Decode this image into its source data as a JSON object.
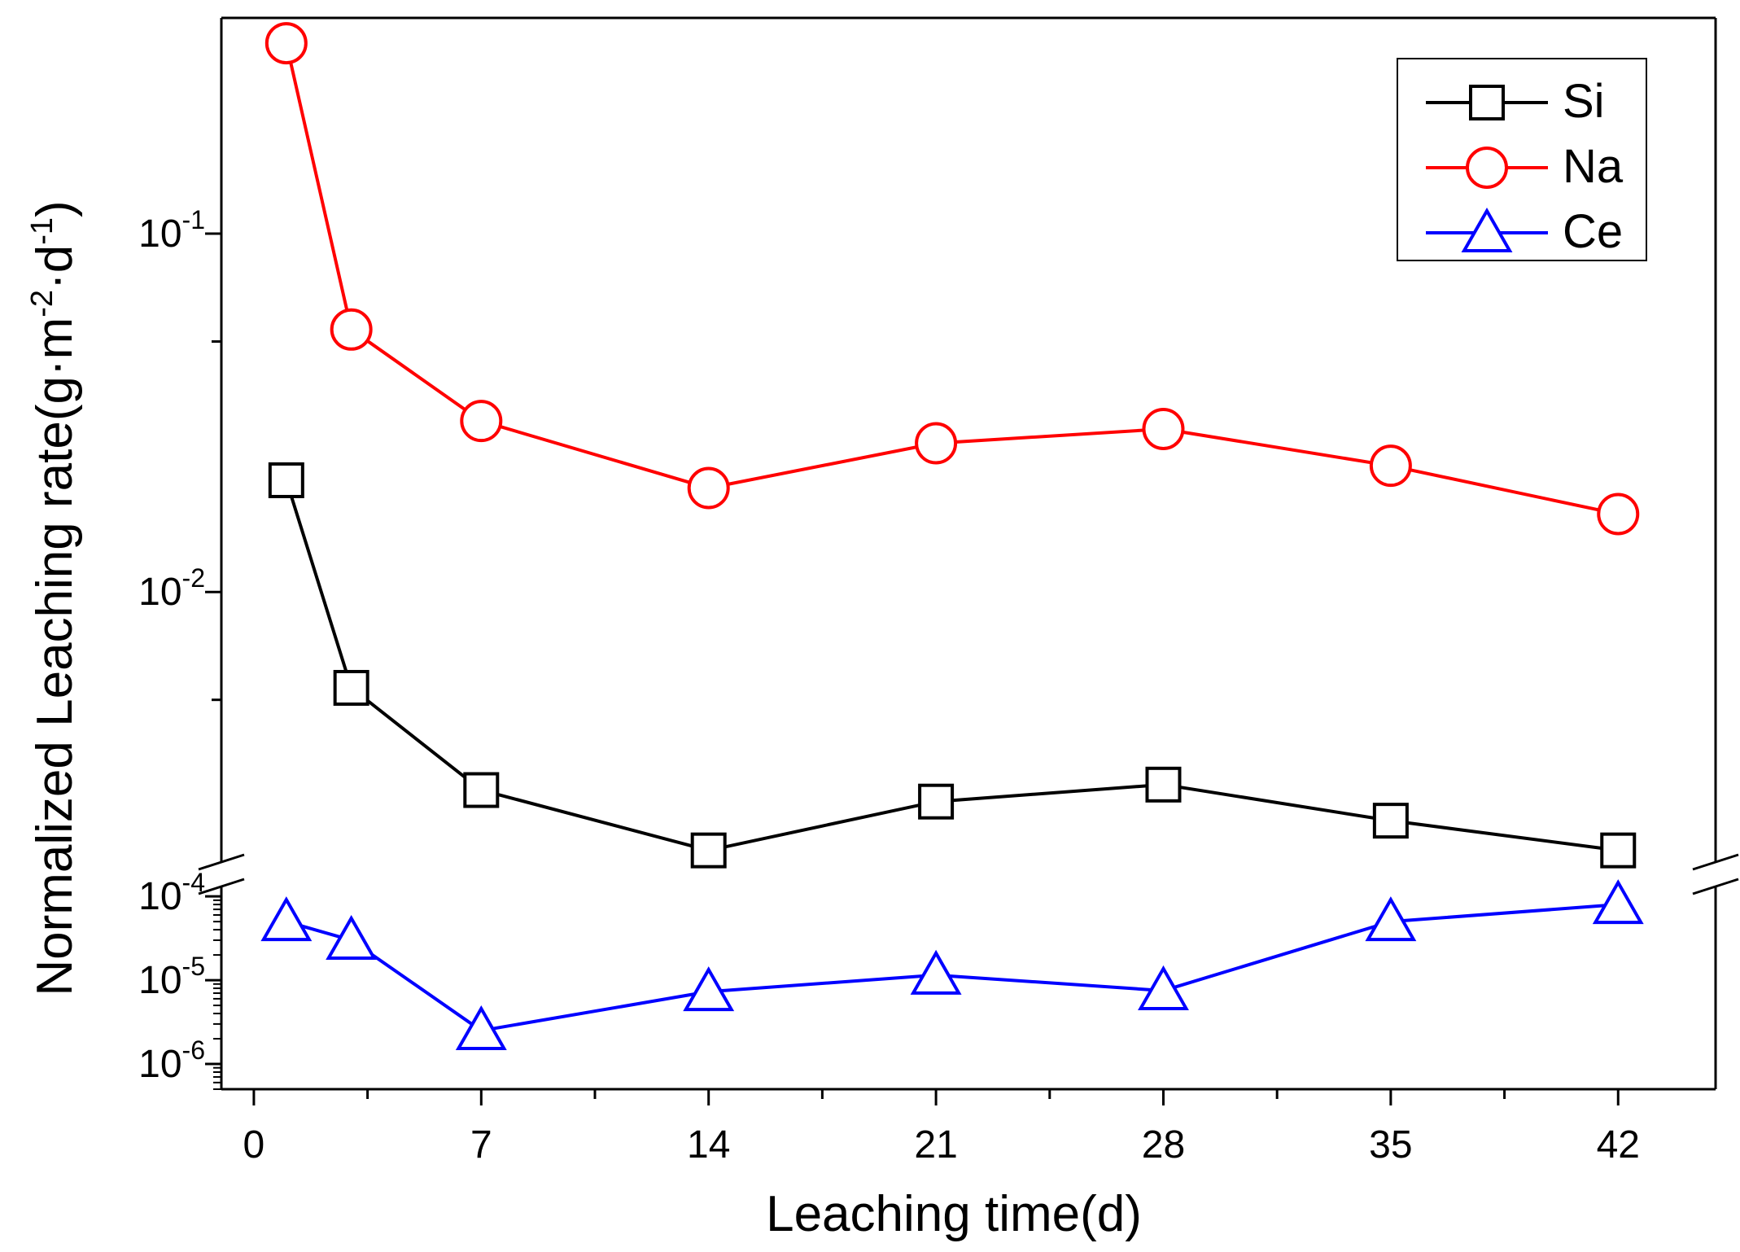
{
  "chart_data": {
    "type": "line",
    "xlabel": "Leaching time(d)",
    "ylabel": "Normalized Leaching rate(g·m⁻²·d⁻¹)",
    "ylabel_parts": {
      "a": "Normalized Leaching rate(g·m",
      "b": "·d",
      "c": ")",
      "exp1": "-2",
      "exp2": "-1"
    },
    "xlim": [
      -1,
      45
    ],
    "x_ticks": [
      0,
      7,
      14,
      21,
      28,
      35,
      42
    ],
    "x_tick_labels": [
      "0",
      "7",
      "14",
      "21",
      "28",
      "35",
      "42"
    ],
    "y_scale": "log",
    "y_break": true,
    "y_upper_lim": [
      0.0018,
      0.4
    ],
    "y_lower_lim": [
      5e-07,
      0.00012
    ],
    "y_upper_ticks": [
      {
        "value": 0.1,
        "base": "10",
        "exp": "-1"
      },
      {
        "value": 0.01,
        "base": "10",
        "exp": "-2"
      }
    ],
    "y_lower_ticks": [
      {
        "value": 0.0001,
        "base": "10",
        "exp": "-4"
      },
      {
        "value": 1e-05,
        "base": "10",
        "exp": "-5"
      },
      {
        "value": 1e-06,
        "base": "10",
        "exp": "-6"
      }
    ],
    "x": [
      1,
      3,
      7,
      14,
      21,
      28,
      35,
      42
    ],
    "series": [
      {
        "name": "Si",
        "color": "#000000",
        "marker": "square",
        "panel": "upper",
        "values": [
          0.0205,
          0.0054,
          0.0028,
          0.0019,
          0.0026,
          0.0029,
          0.0023,
          0.0019
        ]
      },
      {
        "name": "Na",
        "color": "#ff0000",
        "marker": "circle",
        "panel": "upper",
        "values": [
          0.34,
          0.054,
          0.03,
          0.0195,
          0.026,
          0.0285,
          0.0225,
          0.0165
        ]
      },
      {
        "name": "Ce",
        "color": "#0000ff",
        "marker": "triangle",
        "panel": "lower",
        "values": [
          5e-05,
          3e-05,
          2.5e-06,
          7.3e-06,
          1.15e-05,
          7.5e-06,
          5e-05,
          8e-05
        ]
      }
    ],
    "legend_position": "top-right"
  }
}
